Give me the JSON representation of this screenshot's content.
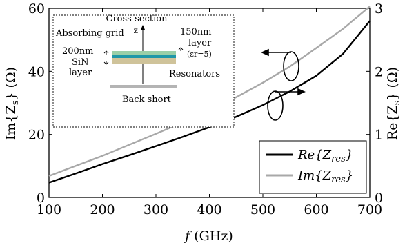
{
  "chart_data": {
    "type": "line",
    "xlabel_italic": "f",
    "xlabel_unit": "(GHz)",
    "ylabel_left": "Im{Z_s} (Ω)",
    "ylabel_right": "Re{Z_s} (Ω)",
    "xlim": [
      100,
      700
    ],
    "ylim_left": [
      0,
      60
    ],
    "ylim_right": [
      0,
      3
    ],
    "xticks": [
      100,
      200,
      300,
      400,
      500,
      600,
      700
    ],
    "yticks_left": [
      0,
      20,
      40,
      60
    ],
    "yticks_right": [
      0,
      1,
      2,
      3
    ],
    "grid": false,
    "legend_position": "bottom-right",
    "series": [
      {
        "name": "Re{Z_res}",
        "color": "#000000",
        "axis": "left",
        "x": [
          100,
          150,
          200,
          250,
          300,
          350,
          400,
          450,
          500,
          550,
          600,
          650,
          700
        ],
        "y": [
          4.7,
          7.6,
          10.6,
          13.4,
          16.3,
          19.2,
          22.3,
          25.6,
          29.3,
          33.6,
          38.6,
          45.6,
          56.0
        ]
      },
      {
        "name": "Im{Z_res}",
        "color": "#a8a8a8",
        "axis": "left",
        "x": [
          100,
          150,
          200,
          250,
          300,
          350,
          400,
          450,
          500,
          550,
          600,
          650,
          700
        ],
        "y": [
          6.8,
          10.0,
          13.2,
          16.7,
          20.2,
          23.8,
          27.7,
          31.8,
          36.4,
          41.5,
          47.4,
          53.5,
          60.6
        ]
      }
    ],
    "legend": [
      {
        "base": "Re",
        "sub": "res",
        "color": "#000000"
      },
      {
        "base": "Im",
        "sub": "res",
        "color": "#a8a8a8"
      }
    ],
    "inset": {
      "title": "Cross-section",
      "axis_label": "z",
      "absorbing_grid": "Absorbing grid",
      "sin_thickness": "200nm",
      "sin_material": "SiN",
      "sin_word": "layer",
      "top_thickness": "150nm",
      "top_word": "layer",
      "permittivity": "(εr=5)",
      "resonators": "Resonators",
      "back_short": "Back short",
      "layer_colors": {
        "grid": "#9acfa8",
        "resonator": "#1f97a8",
        "dielectric": "#cfc39a",
        "backshort": "#b4b4b4"
      }
    }
  }
}
